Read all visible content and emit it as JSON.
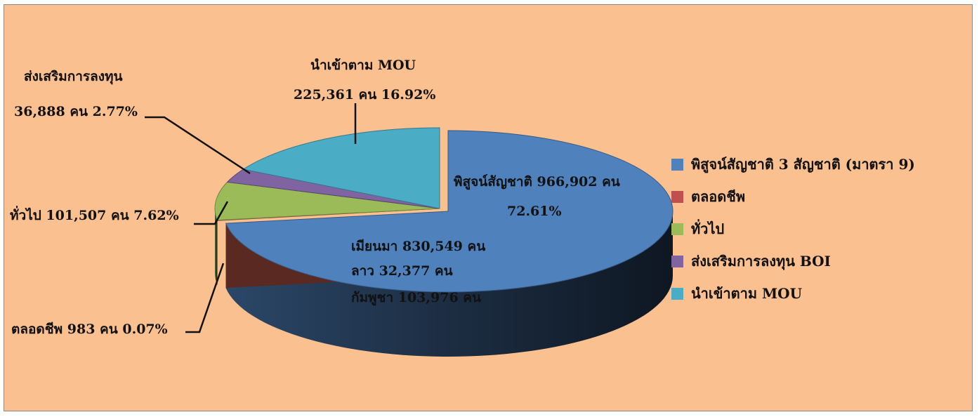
{
  "chart_data": {
    "type": "pie",
    "style": "3d-exploded",
    "slices": [
      {
        "key": "verify",
        "legend": "พิสูจน์สัญชาติ 3 สัญชาติ (มาตรา 9)",
        "value": 966902,
        "percent": 72.61,
        "color": "#4f81bd"
      },
      {
        "key": "lifetime",
        "legend": "ตลอดชีพ",
        "value": 983,
        "percent": 0.07,
        "color": "#c0504d"
      },
      {
        "key": "general",
        "legend": "ทั่วไป",
        "value": 101507,
        "percent": 7.62,
        "color": "#9bbb59"
      },
      {
        "key": "boi",
        "legend": "ส่งเสริมการลงทุน BOI",
        "value": 36888,
        "percent": 2.77,
        "color": "#8064a2"
      },
      {
        "key": "mou",
        "legend": "นำเข้าตาม MOU",
        "value": 225361,
        "percent": 16.92,
        "color": "#4bacc6"
      }
    ],
    "labels": {
      "verify_line1": "พิสูจน์สัญชาติ 966,902 คน",
      "verify_line2": "72.61%",
      "detail_1": "เมียนมา  830,549 คน",
      "detail_2": "ลาว          32,377 คน",
      "detail_3": "กัมพูชา  103,976 คน",
      "mou_line1": "นำเข้าตาม MOU",
      "mou_line2": "225,361 คน  16.92%",
      "boi_line1": "ส่งเสริมการลงทุน",
      "boi_line2": "36,888 คน  2.77%",
      "general_line": "ทั่วไป 101,507 คน 7.62%",
      "lifetime_line": "ตลอดชีพ 983 คน 0.07%"
    },
    "legend_position": "right",
    "background": "#fac08f"
  }
}
